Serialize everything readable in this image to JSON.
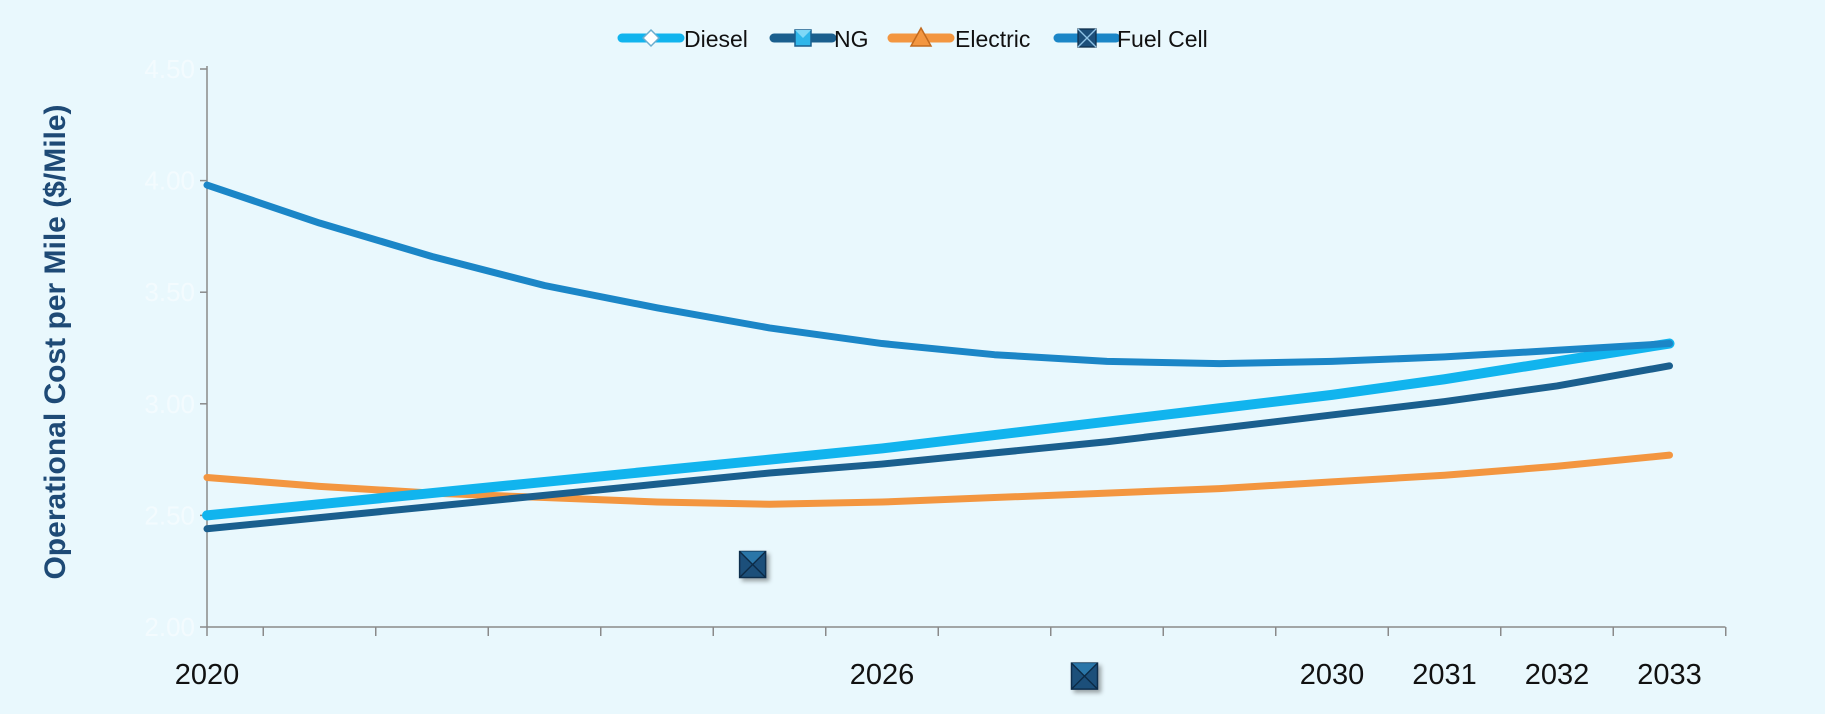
{
  "chart_data": {
    "type": "line",
    "ylabel": "Operational Cost per Mile ($/Mile)",
    "xlabel": "",
    "title": "",
    "ylim": [
      2.0,
      4.5
    ],
    "yticks": [
      "2.00",
      "2.50",
      "3.00",
      "3.50",
      "4.00",
      "4.50"
    ],
    "x_positions": [
      2020,
      2021,
      2022,
      2023,
      2024,
      2025,
      2026,
      2027,
      2028,
      2029,
      2030,
      2031,
      2032,
      2033
    ],
    "xtick_labels": [
      {
        "x": 2020,
        "label": "2020"
      },
      {
        "x": 2026,
        "label": "2026"
      },
      {
        "x": 2030,
        "label": "2030"
      },
      {
        "x": 2031,
        "label": "2031"
      },
      {
        "x": 2032,
        "label": "2032"
      },
      {
        "x": 2033,
        "label": "2033"
      }
    ],
    "legend_position": "top-center",
    "grid": false,
    "series": [
      {
        "name": "Diesel",
        "color": "#11b4ee",
        "marker": "diamond",
        "values": [
          2.5,
          2.55,
          2.6,
          2.65,
          2.7,
          2.75,
          2.8,
          2.86,
          2.92,
          2.98,
          3.04,
          3.11,
          3.19,
          3.27
        ]
      },
      {
        "name": "NG",
        "color": "#1a5f8e",
        "marker": "square",
        "values": [
          2.44,
          2.49,
          2.54,
          2.59,
          2.64,
          2.69,
          2.73,
          2.78,
          2.83,
          2.89,
          2.95,
          3.01,
          3.08,
          3.17
        ]
      },
      {
        "name": "Electric",
        "color": "#f39640",
        "marker": "triangle",
        "values": [
          2.67,
          2.63,
          2.6,
          2.58,
          2.56,
          2.55,
          2.56,
          2.58,
          2.6,
          2.62,
          2.65,
          2.68,
          2.72,
          2.77
        ]
      },
      {
        "name": "Fuel Cell",
        "color": "#1b86c7",
        "marker": "x-square",
        "values": [
          3.98,
          3.81,
          3.66,
          3.53,
          3.43,
          3.34,
          3.27,
          3.22,
          3.19,
          3.18,
          3.19,
          3.21,
          3.24,
          3.27
        ]
      }
    ],
    "stray_markers": [
      {
        "marker": "x-square",
        "x": 2024.85,
        "y": 2.28
      },
      {
        "marker": "x-square",
        "x": 2027.8,
        "y": 1.78
      }
    ]
  }
}
